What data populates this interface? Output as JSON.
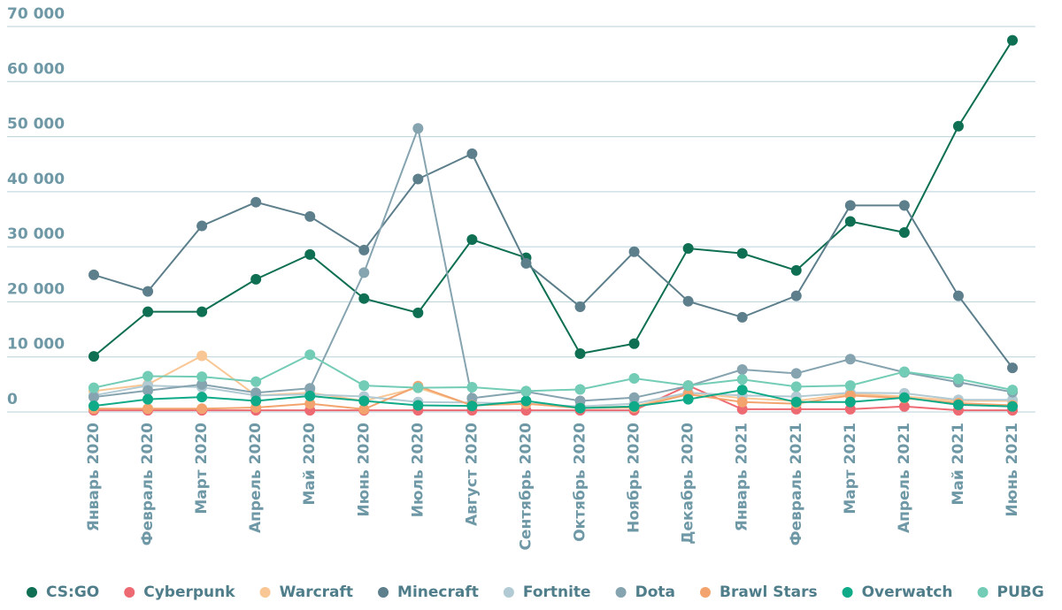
{
  "chart_data": {
    "type": "line",
    "categories": [
      "Январь 2020",
      "Февраль 2020",
      "Март 2020",
      "Апрель 2020",
      "Май 2020",
      "Июнь 2020",
      "Июль 2020",
      "Август 2020",
      "Сентябрь 2020",
      "Октябрь 2020",
      "Ноябрь 2020",
      "Декабрь 2020",
      "Январь 2021",
      "Февраль 2021",
      "Март 2021",
      "Апрель 2021",
      "Май 2021",
      "Июнь 2021"
    ],
    "ylim": [
      0,
      70000
    ],
    "yticks": [
      0,
      {
        "value": 10000,
        "label": "10 000"
      },
      {
        "value": 20000,
        "label": "20 000"
      },
      {
        "value": 30000,
        "label": "30 000"
      },
      {
        "value": 40000,
        "label": "40 000"
      },
      {
        "value": 50000,
        "label": "50 000"
      },
      {
        "value": 60000,
        "label": "60 000"
      },
      {
        "value": 70000,
        "label": "70 000"
      }
    ],
    "grid": true,
    "legend": "bottom",
    "series": [
      {
        "name": "CS:GO",
        "color": "#0e6f52",
        "values": [
          10100,
          18200,
          18200,
          24100,
          28600,
          20600,
          18000,
          31300,
          28000,
          10600,
          12400,
          29700,
          28800,
          25700,
          34600,
          32600,
          51900,
          67500
        ]
      },
      {
        "name": "Cyberpunk",
        "color": "#ee6a72",
        "values": [
          300,
          300,
          300,
          300,
          300,
          300,
          300,
          300,
          300,
          300,
          300,
          4800,
          500,
          500,
          500,
          1000,
          300,
          300
        ]
      },
      {
        "name": "Warcraft",
        "color": "#f9c795",
        "values": [
          3800,
          5000,
          10200,
          3000,
          3500,
          2000,
          4400,
          1200,
          1500,
          800,
          1000,
          3500,
          2500,
          2000,
          3300,
          2800,
          2000,
          2000
        ]
      },
      {
        "name": "Minecraft",
        "color": "#5d7f8c",
        "values": [
          24900,
          21900,
          33800,
          38100,
          35500,
          29400,
          42300,
          46900,
          27000,
          19100,
          29100,
          20100,
          17200,
          21100,
          37500,
          37500,
          21100,
          8000
        ]
      },
      {
        "name": "Fortnite",
        "color": "#b1cad3",
        "values": [
          3000,
          4800,
          4500,
          3000,
          3200,
          2800,
          1800,
          1700,
          1500,
          1000,
          1500,
          3500,
          3000,
          2800,
          3500,
          3400,
          2200,
          2200
        ]
      },
      {
        "name": "Dota",
        "color": "#86a4b0",
        "values": [
          2700,
          3900,
          5000,
          3500,
          4300,
          25300,
          51500,
          2500,
          3700,
          2000,
          2600,
          4700,
          7700,
          7000,
          9600,
          7200,
          5400,
          3600
        ]
      },
      {
        "name": "Brawl Stars",
        "color": "#f3a46e",
        "values": [
          600,
          600,
          600,
          800,
          1500,
          500,
          4700,
          1200,
          1500,
          700,
          800,
          3200,
          1800,
          1500,
          3000,
          2500,
          1600,
          1200
        ]
      },
      {
        "name": "Overwatch",
        "color": "#0faa88",
        "values": [
          1100,
          2300,
          2700,
          2000,
          2900,
          2000,
          1200,
          1100,
          2000,
          700,
          1000,
          2300,
          4000,
          1800,
          1800,
          2600,
          1300,
          1000
        ]
      },
      {
        "name": "PUBG",
        "color": "#72ccb6",
        "values": [
          4400,
          6500,
          6400,
          5500,
          10400,
          4800,
          4400,
          4500,
          3800,
          4100,
          6100,
          4800,
          5900,
          4600,
          4800,
          7300,
          6000,
          4000
        ]
      }
    ]
  }
}
